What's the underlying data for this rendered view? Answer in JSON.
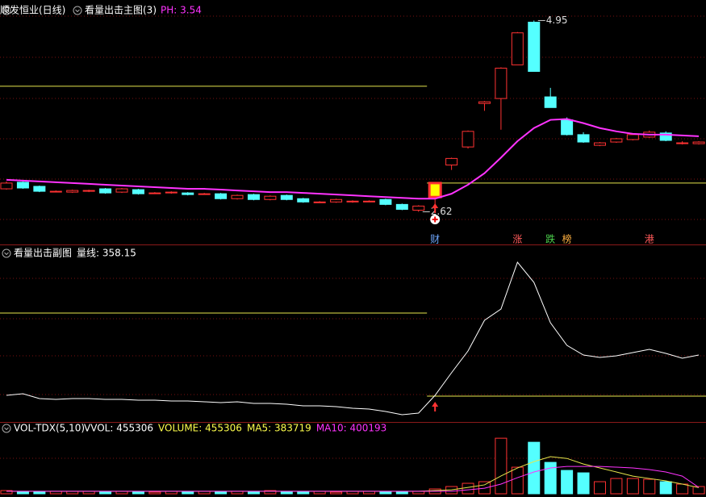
{
  "chart_data": [
    {
      "type": "candlestick",
      "title": "顺发恒业(日线)",
      "indicator": "看量出击主图(3)",
      "indicator_value": "PH: 3.54",
      "indicator_color": "#ff33ff",
      "open": [
        2.9,
        2.98,
        2.93,
        2.87,
        2.86,
        2.87,
        2.9,
        2.86,
        2.89,
        2.85,
        2.85,
        2.85,
        2.84,
        2.84,
        2.78,
        2.83,
        2.77,
        2.82,
        2.78,
        2.74,
        2.74,
        2.75,
        2.75,
        2.77,
        2.71,
        2.64,
        2.8,
        3.19,
        3.41,
        3.94,
        4.0,
        4.41,
        4.93,
        4.02,
        3.74,
        3.56,
        3.43,
        3.47,
        3.5,
        3.53,
        3.58,
        3.46,
        3.45
      ],
      "high": [
        2.99,
        2.99,
        2.94,
        2.88,
        2.89,
        2.89,
        2.91,
        2.91,
        2.9,
        2.86,
        2.87,
        2.86,
        2.85,
        2.85,
        2.83,
        2.84,
        2.82,
        2.83,
        2.79,
        2.75,
        2.78,
        2.76,
        2.76,
        2.78,
        2.72,
        2.7,
        2.98,
        3.28,
        3.61,
        3.97,
        4.38,
        4.81,
        4.95,
        4.13,
        3.77,
        3.59,
        3.47,
        3.52,
        3.57,
        3.61,
        3.6,
        3.48,
        3.48
      ],
      "low": [
        2.89,
        2.9,
        2.86,
        2.86,
        2.85,
        2.86,
        2.84,
        2.85,
        2.83,
        2.84,
        2.84,
        2.82,
        2.83,
        2.77,
        2.77,
        2.76,
        2.76,
        2.76,
        2.73,
        2.73,
        2.73,
        2.73,
        2.74,
        2.7,
        2.64,
        2.62,
        2.7,
        3.13,
        3.39,
        3.85,
        3.62,
        4.41,
        4.33,
        3.89,
        3.55,
        3.46,
        3.42,
        3.46,
        3.49,
        3.52,
        3.48,
        3.44,
        3.44
      ],
      "close": [
        2.97,
        2.91,
        2.87,
        2.87,
        2.88,
        2.88,
        2.85,
        2.9,
        2.84,
        2.85,
        2.86,
        2.83,
        2.84,
        2.78,
        2.82,
        2.77,
        2.81,
        2.77,
        2.74,
        2.74,
        2.77,
        2.75,
        2.75,
        2.71,
        2.65,
        2.69,
        2.97,
        3.27,
        3.6,
        3.96,
        4.37,
        4.8,
        4.33,
        3.89,
        3.56,
        3.47,
        3.46,
        3.51,
        3.56,
        3.59,
        3.49,
        3.46,
        3.47
      ],
      "up_color": "#ff3232",
      "down_color": "#54ffff",
      "highlight_color": "#ffff00",
      "ma": {
        "color": "#ff33ff",
        "values": [
          3.01,
          3.0,
          2.99,
          2.98,
          2.97,
          2.96,
          2.95,
          2.94,
          2.93,
          2.92,
          2.91,
          2.9,
          2.9,
          2.89,
          2.88,
          2.87,
          2.86,
          2.86,
          2.85,
          2.84,
          2.83,
          2.82,
          2.81,
          2.8,
          2.79,
          2.78,
          2.78,
          2.84,
          2.95,
          3.09,
          3.28,
          3.48,
          3.64,
          3.74,
          3.75,
          3.7,
          3.64,
          3.6,
          3.57,
          3.56,
          3.56,
          3.55,
          3.54
        ]
      },
      "levels": [
        {
          "value": 4.15,
          "color": "#e6e64c"
        },
        {
          "value": 2.97,
          "color": "#e6e64c"
        }
      ],
      "annotations": [
        4.95,
        2.62
      ],
      "events": [
        null,
        null,
        null,
        null,
        null,
        null,
        null,
        null,
        null,
        null,
        null,
        null,
        null,
        null,
        null,
        null,
        null,
        null,
        null,
        null,
        null,
        null,
        null,
        null,
        null,
        null,
        {
          "text": "财",
          "color": "#6fa8ff"
        },
        null,
        null,
        null,
        null,
        {
          "text": "涨",
          "color": "#ff5a5a"
        },
        null,
        {
          "text": "跌",
          "color": "#4cd24c"
        },
        {
          "text": "榜",
          "color": "#ffb040"
        },
        null,
        null,
        null,
        null,
        {
          "text": "港",
          "color": "#ff5a5a"
        },
        null,
        null,
        null
      ],
      "ylim": [
        2.35,
        5.2
      ]
    },
    {
      "type": "line",
      "title": "看量出击副图",
      "legend": "量线: 358.15",
      "color": "#ffffff",
      "values": [
        139.8,
        148.5,
        122.3,
        117.9,
        122.3,
        122.3,
        117.9,
        117.9,
        113.6,
        113.6,
        109.2,
        109.2,
        104.8,
        100.5,
        104.8,
        96.1,
        96.1,
        91.7,
        83.0,
        83.0,
        78.6,
        69.9,
        65.5,
        52.4,
        34.9,
        43.7,
        139.8,
        262.1,
        380.0,
        546.0,
        607.2,
        860.5,
        751.3,
        532.9,
        410.6,
        358.2,
        345.1,
        353.8,
        371.3,
        388.8,
        366.9,
        340.7,
        358.15
      ],
      "levels": [
        {
          "value": 585.3,
          "color": "#e6e64c"
        },
        {
          "value": 135.4,
          "color": "#e6e64c"
        }
      ],
      "ylim": [
        0,
        948
      ]
    },
    {
      "type": "volume",
      "title": "VOL-TDX(5,10)",
      "legend": [
        {
          "text": "VVOL: 455306",
          "color": "#ffffff"
        },
        {
          "text": "VOLUME: 455306",
          "color": "#ffff4c"
        },
        {
          "text": "MA5: 383719",
          "color": "#ffff4c"
        },
        {
          "text": "MA10: 400193",
          "color": "#ff33ff"
        }
      ],
      "values": [
        202360,
        151770,
        151770,
        151770,
        151770,
        151770,
        151770,
        151770,
        151770,
        101180,
        151770,
        151770,
        151770,
        151770,
        151770,
        151770,
        202360,
        151770,
        151770,
        151770,
        101180,
        151770,
        151770,
        151770,
        151770,
        151770,
        303540,
        455310,
        657670,
        758850,
        3490710,
        1669470,
        3237760,
        1973010,
        1467110,
        1315340,
        758850,
        961210,
        961210,
        910620,
        758850,
        607080,
        455306
      ],
      "series": [
        {
          "color": "#e6e64c",
          "values": [
            160000,
            160000,
            160000,
            160000,
            160000,
            160000,
            160000,
            160000,
            160000,
            160000,
            160000,
            160000,
            160000,
            160000,
            160000,
            160000,
            160000,
            160000,
            160000,
            160000,
            160000,
            160000,
            160000,
            160000,
            160000,
            160000,
            200000,
            250000,
            400000,
            560000,
            1120000,
            1620000,
            2020000,
            2330000,
            2220000,
            1870000,
            1620000,
            1370000,
            1110000,
            960000,
            810000,
            610000,
            383719
          ]
        },
        {
          "color": "#ff33ff",
          "values": [
            160000,
            160000,
            160000,
            160000,
            160000,
            160000,
            160000,
            160000,
            160000,
            160000,
            160000,
            160000,
            160000,
            160000,
            160000,
            160000,
            160000,
            160000,
            160000,
            160000,
            160000,
            160000,
            160000,
            160000,
            160000,
            160000,
            160000,
            160000,
            250000,
            350000,
            610000,
            1010000,
            1370000,
            1620000,
            1720000,
            1720000,
            1720000,
            1670000,
            1620000,
            1520000,
            1370000,
            1110000,
            400193
          ]
        }
      ],
      "ylim": [
        0,
        3650000
      ]
    }
  ]
}
